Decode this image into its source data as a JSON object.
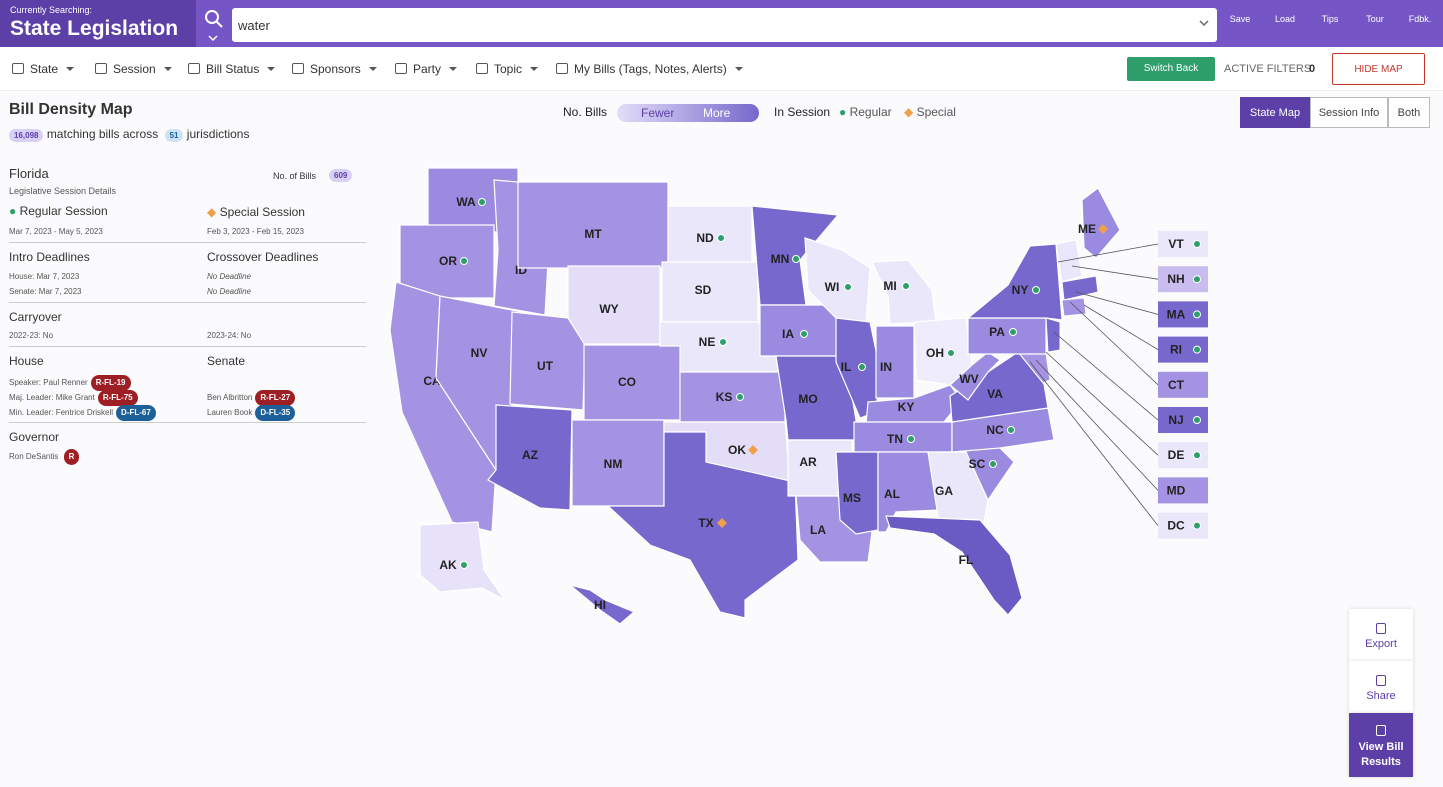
{
  "header": {
    "searching_label": "Currently Searching:",
    "title": "State Legislation",
    "query": "water",
    "actions": [
      "Save",
      "Load",
      "Tips",
      "Tour",
      "Fdbk."
    ]
  },
  "filters": {
    "items": [
      "State",
      "Session",
      "Bill Status",
      "Sponsors",
      "Party",
      "Topic",
      "My Bills (Tags, Notes, Alerts)"
    ],
    "switch_back": "Switch Back",
    "active_filters_label": "ACTIVE FILTERS",
    "active_filters_count": "0",
    "hide_map": "HIDE MAP"
  },
  "map_header": {
    "title": "Bill Density Map",
    "matching_count": "16,098",
    "matching_text": "matching bills across",
    "jurisdictions_count": "51",
    "jurisdictions_text": "jurisdictions",
    "legend_label": "No. Bills",
    "fewer": "Fewer",
    "more": "More",
    "in_session": "In Session",
    "regular": "Regular",
    "special": "Special",
    "views": [
      "State Map",
      "Session Info",
      "Both"
    ]
  },
  "panel": {
    "state": "Florida",
    "subtitle": "Legislative Session Details",
    "bills_label": "No. of Bills",
    "bills_count": "609",
    "regular": {
      "label": "Regular Session",
      "dates": "Mar 7, 2023 - May 5, 2023"
    },
    "special": {
      "label": "Special Session",
      "dates": "Feb 3, 2023 - Feb 15, 2023"
    },
    "intro": {
      "title": "Intro Deadlines",
      "house": "House: Mar 7, 2023",
      "senate": "Senate: Mar 7, 2023"
    },
    "crossover": {
      "title": "Crossover Deadlines",
      "house": "No Deadline",
      "senate": "No Deadline"
    },
    "carryover": {
      "title": "Carryover",
      "first": "2022-23: No",
      "second": "2023-24: No"
    },
    "house": {
      "title": "House",
      "rows": [
        {
          "label": "Speaker: Paul Renner",
          "badge": "R-FL-19",
          "color": "#9e1f23"
        },
        {
          "label": "Maj. Leader: Mike Grant",
          "badge": "R-FL-75",
          "color": "#9e1f23"
        },
        {
          "label": "Min. Leader: Fentrice Driskell",
          "badge": "D-FL-67",
          "color": "#1d5f98"
        }
      ]
    },
    "senate": {
      "title": "Senate",
      "rows": [
        {
          "label": "Ben Albritton",
          "badge": "R-FL-27",
          "color": "#9e1f23"
        },
        {
          "label": "Lauren Book",
          "badge": "D-FL-35",
          "color": "#1d5f98"
        }
      ]
    },
    "governor": {
      "title": "Governor",
      "name": "Ron DeSantis",
      "badge": "R",
      "color": "#9e1f23"
    }
  },
  "states": [
    {
      "label": "WA",
      "color": "#9b8be0",
      "session": "regular"
    },
    {
      "label": "OR",
      "color": "#a393e2",
      "session": "regular"
    },
    {
      "label": "CA",
      "color": "#a393e2",
      "session": "regular"
    },
    {
      "label": "NV",
      "color": "#a393e2"
    },
    {
      "label": "ID",
      "color": "#a393e2"
    },
    {
      "label": "MT",
      "color": "#a393e2"
    },
    {
      "label": "WY",
      "color": "#e3ddf8"
    },
    {
      "label": "UT",
      "color": "#a393e2"
    },
    {
      "label": "AZ",
      "color": "#7668cc"
    },
    {
      "label": "CO",
      "color": "#a393e2"
    },
    {
      "label": "NM",
      "color": "#a393e2"
    },
    {
      "label": "ND",
      "color": "#ebe7fb",
      "session": "regular"
    },
    {
      "label": "SD",
      "color": "#ebe7fb"
    },
    {
      "label": "NE",
      "color": "#ebe7fb",
      "session": "regular"
    },
    {
      "label": "KS",
      "color": "#a393e2",
      "session": "regular"
    },
    {
      "label": "OK",
      "color": "#e3ddf8",
      "session": "special"
    },
    {
      "label": "TX",
      "color": "#7668cc",
      "session": "special"
    },
    {
      "label": "MN",
      "color": "#7668cc",
      "session": "regular"
    },
    {
      "label": "IA",
      "color": "#9b8be0",
      "session": "regular"
    },
    {
      "label": "MO",
      "color": "#7668cc"
    },
    {
      "label": "AR",
      "color": "#ebe7fb"
    },
    {
      "label": "LA",
      "color": "#a393e2"
    },
    {
      "label": "WI",
      "color": "#ebe7fb",
      "session": "regular"
    },
    {
      "label": "IL",
      "color": "#7668cc",
      "session": "regular"
    },
    {
      "label": "MI",
      "color": "#ebe7fb",
      "session": "regular"
    },
    {
      "label": "IN",
      "color": "#9b8be0"
    },
    {
      "label": "OH",
      "color": "#efecfc",
      "session": "regular"
    },
    {
      "label": "KY",
      "color": "#9b8be0"
    },
    {
      "label": "TN",
      "color": "#9b8be0",
      "session": "regular"
    },
    {
      "label": "MS",
      "color": "#7668cc"
    },
    {
      "label": "AL",
      "color": "#9b8be0"
    },
    {
      "label": "GA",
      "color": "#ebe7fb"
    },
    {
      "label": "FL",
      "color": "#6a5ac4"
    },
    {
      "label": "SC",
      "color": "#9b8be0",
      "session": "regular"
    },
    {
      "label": "NC",
      "color": "#9b8be0",
      "session": "regular"
    },
    {
      "label": "VA",
      "color": "#7668cc"
    },
    {
      "label": "WV",
      "color": "#9b8be0"
    },
    {
      "label": "PA",
      "color": "#9b8be0",
      "session": "regular"
    },
    {
      "label": "NY",
      "color": "#7668cc",
      "session": "regular"
    },
    {
      "label": "ME",
      "color": "#9b8be0",
      "session": "special"
    },
    {
      "label": "AK",
      "color": "#e7e2fa",
      "session": "regular"
    },
    {
      "label": "HI",
      "color": "#7668cc"
    }
  ],
  "small_states": [
    {
      "label": "VT",
      "color": "#ebe7fb",
      "session": "regular"
    },
    {
      "label": "NH",
      "color": "#c9bdf0",
      "session": "regular"
    },
    {
      "label": "MA",
      "color": "#7668cc",
      "session": "regular"
    },
    {
      "label": "RI",
      "color": "#7668cc",
      "session": "regular"
    },
    {
      "label": "CT",
      "color": "#a393e2"
    },
    {
      "label": "NJ",
      "color": "#7668cc",
      "session": "regular"
    },
    {
      "label": "DE",
      "color": "#ebe7fb",
      "session": "regular"
    },
    {
      "label": "MD",
      "color": "#a393e2"
    },
    {
      "label": "DC",
      "color": "#ebe7fb",
      "session": "regular"
    }
  ],
  "side_buttons": [
    "Export",
    "Share",
    "View Bill Results"
  ]
}
